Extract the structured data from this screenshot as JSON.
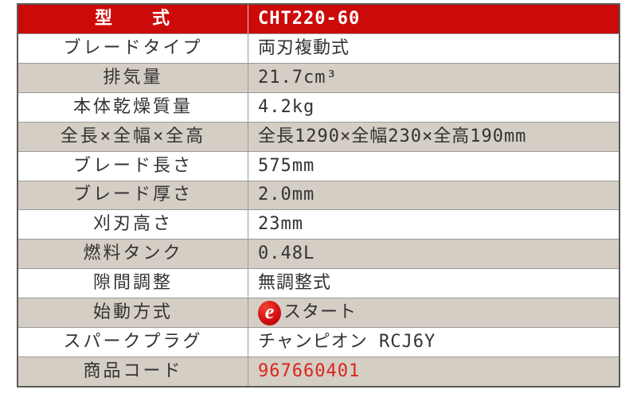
{
  "colors": {
    "header_bg": "#cc0a0a",
    "header_text": "#ffffff",
    "row_bg": "#ffffff",
    "row_alt_bg": "#d5cec4",
    "grid_line": "#9a9a9a",
    "outer_border": "#5a5a5a",
    "code_red": "#d7261d",
    "estart_red": "#d40f14"
  },
  "table": {
    "header": {
      "label": "型　　式",
      "value": "CHT220-60"
    },
    "rows": [
      {
        "label": "ブレードタイプ",
        "value": "両刃複動式"
      },
      {
        "label": "排気量",
        "value": "21.7cm³"
      },
      {
        "label": "本体乾燥質量",
        "value": "4.2kg"
      },
      {
        "label": "全長×全幅×全高",
        "value": "全長1290×全幅230×全高190mm"
      },
      {
        "label": "ブレード長さ",
        "value": "575mm"
      },
      {
        "label": "ブレード厚さ",
        "value": "2.0mm"
      },
      {
        "label": "刈刃高さ",
        "value": "23mm"
      },
      {
        "label": "燃料タンク",
        "value": "0.48L"
      },
      {
        "label": "隙間調整",
        "value": "無調整式"
      },
      {
        "label": "始動方式",
        "value": "スタート",
        "icon_glyph": "e"
      },
      {
        "label": "スパークプラグ",
        "value": "チャンピオン RCJ6Y"
      },
      {
        "label": "商品コード",
        "value": "967660401"
      }
    ]
  }
}
